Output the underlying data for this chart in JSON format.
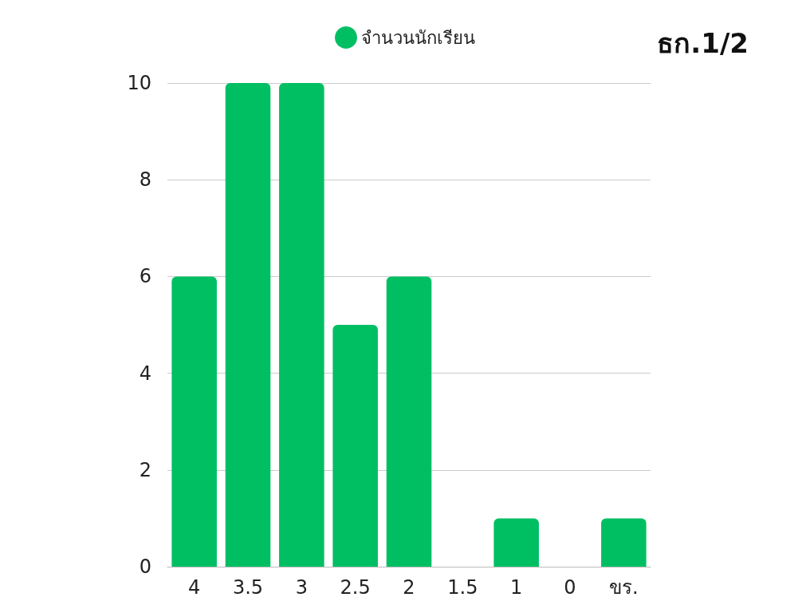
{
  "chart_data": {
    "type": "bar",
    "title": "ธก.1/2",
    "categories": [
      "4",
      "3.5",
      "3",
      "2.5",
      "2",
      "1.5",
      "1",
      "0",
      "ขร."
    ],
    "series": [
      {
        "name": "จำนวนนักเรียน",
        "color": "#00bf63",
        "values": [
          6,
          10,
          10,
          5,
          6,
          0,
          1,
          0,
          1
        ]
      }
    ],
    "ylim": [
      0,
      10
    ],
    "yticks": [
      0,
      2,
      4,
      6,
      8,
      10
    ],
    "grid": "y",
    "legend": "top"
  }
}
